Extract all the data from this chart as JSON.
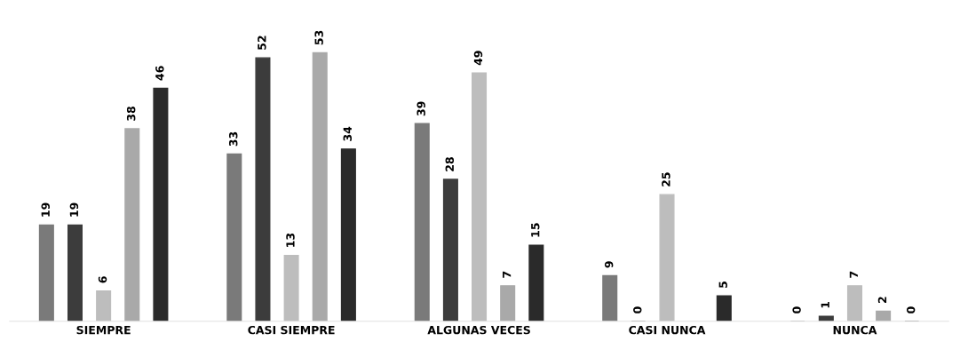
{
  "chart_data": {
    "type": "bar",
    "categories": [
      "SIEMPRE",
      "CASI SIEMPRE",
      "ALGUNAS VECES",
      "CASI NUNCA",
      "NUNCA"
    ],
    "series": [
      {
        "color": "#7a7a7a",
        "values": [
          19,
          33,
          39,
          9,
          0
        ]
      },
      {
        "color": "#3c3c3c",
        "values": [
          19,
          52,
          28,
          0,
          1
        ]
      },
      {
        "color": "#bdbdbd",
        "values": [
          6,
          13,
          49,
          25,
          7
        ]
      },
      {
        "color": "#a9a9a9",
        "values": [
          38,
          53,
          7,
          null,
          2
        ]
      },
      {
        "color": "#2a2a2a",
        "values": [
          46,
          34,
          15,
          5,
          0
        ]
      }
    ],
    "data_labels": true,
    "tick_labels": "x",
    "grid": false,
    "legend": false
  }
}
